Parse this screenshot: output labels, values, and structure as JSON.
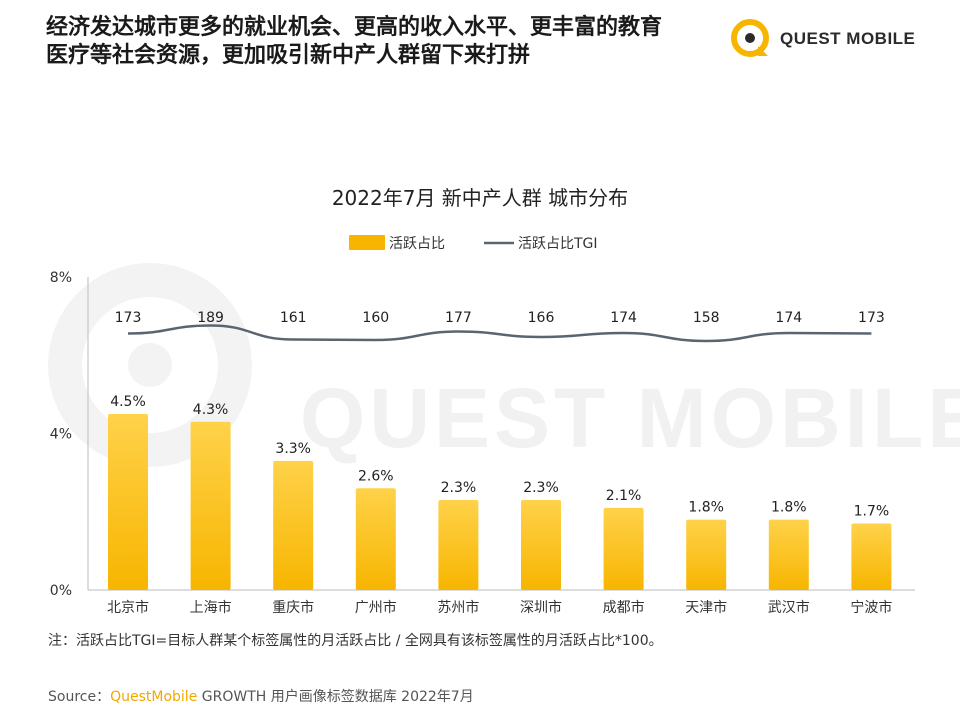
{
  "headline": {
    "line1": "经济发达城市更多的就业机会、更高的收入水平、更丰富的教育",
    "line2": "医疗等社会资源，更加吸引新中产人群留下来打拼"
  },
  "logo": {
    "text": "QUEST MOBILE"
  },
  "watermark": {
    "text": "QUEST MOBILE"
  },
  "colors": {
    "bar": "#f7b500",
    "bar_light": "#ffd24a",
    "line": "#5b6570",
    "brand": "#f0a800"
  },
  "chart_data": {
    "type": "bar",
    "title": "2022年7月 新中产人群 城市分布",
    "legend_position": "top-center",
    "categories": [
      "北京市",
      "上海市",
      "重庆市",
      "广州市",
      "苏州市",
      "深圳市",
      "成都市",
      "天津市",
      "武汉市",
      "宁波市"
    ],
    "series": [
      {
        "name": "活跃占比",
        "type": "bar",
        "values": [
          4.5,
          4.3,
          3.3,
          2.6,
          2.3,
          2.3,
          2.1,
          1.8,
          1.8,
          1.7
        ],
        "labels": [
          "4.5%",
          "4.3%",
          "3.3%",
          "2.6%",
          "2.3%",
          "2.3%",
          "2.1%",
          "1.8%",
          "1.8%",
          "1.7%"
        ]
      },
      {
        "name": "活跃占比TGI",
        "type": "line",
        "values": [
          173,
          189,
          161,
          160,
          177,
          166,
          174,
          158,
          174,
          173
        ],
        "labels": [
          "173",
          "189",
          "161",
          "160",
          "177",
          "166",
          "174",
          "158",
          "174",
          "173"
        ]
      }
    ],
    "y_ticks": [
      "8%",
      "4%",
      "0%"
    ],
    "ylim": [
      0,
      8
    ]
  },
  "note": "注：活跃占比TGI=目标人群某个标签属性的月活跃占比 / 全网具有该标签属性的月活跃占比*100。",
  "source": {
    "prefix": "Source：",
    "brand": "QuestMobile",
    "rest": " GROWTH 用户画像标签数据库 2022年7月"
  }
}
